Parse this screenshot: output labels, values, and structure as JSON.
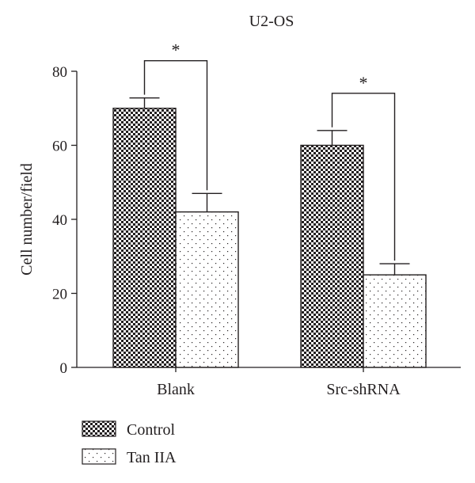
{
  "chart_data": {
    "type": "bar",
    "title": "U2-OS",
    "ylabel": "Cell number/field",
    "xlabel": "",
    "categories": [
      "Blank",
      "Src-shRNA"
    ],
    "series": [
      {
        "name": "Control",
        "values": [
          70,
          60
        ],
        "errors": [
          2.8,
          4.0
        ],
        "pattern": "checkerboard"
      },
      {
        "name": "Tan IIA",
        "values": [
          42,
          25
        ],
        "errors": [
          5.0,
          3.0
        ],
        "pattern": "dots"
      }
    ],
    "ylim": [
      0,
      80
    ],
    "yticks": [
      "0",
      "20",
      "40",
      "60",
      "80"
    ],
    "significance": [
      {
        "category": "Blank",
        "label": "*"
      },
      {
        "category": "Src-shRNA",
        "label": "*"
      }
    ],
    "legend_position": "bottom-left",
    "grid": false,
    "colors": {
      "ink": "#231f20",
      "background": "#ffffff"
    }
  }
}
